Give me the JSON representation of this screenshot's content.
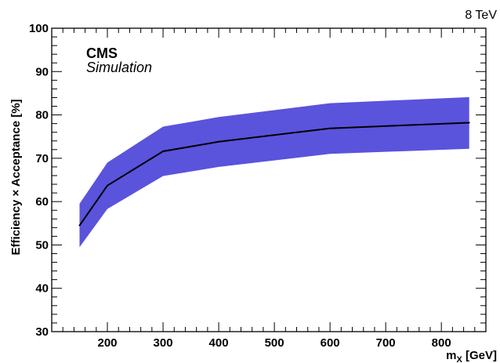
{
  "chart_data": {
    "type": "area",
    "x": [
      150,
      200,
      300,
      400,
      600,
      850
    ],
    "series": [
      {
        "role": "central",
        "values": [
          54.5,
          63.7,
          71.6,
          73.8,
          76.9,
          78.2
        ]
      },
      {
        "role": "band-upper",
        "values": [
          59.5,
          69.0,
          77.3,
          79.5,
          82.7,
          84.1
        ]
      },
      {
        "role": "band-lower",
        "values": [
          49.5,
          58.3,
          65.9,
          68.0,
          71.0,
          72.2
        ]
      }
    ],
    "xlim": [
      100,
      880
    ],
    "ylim": [
      30,
      100
    ],
    "x_ticks": [
      200,
      300,
      400,
      500,
      600,
      700,
      800
    ],
    "y_ticks": [
      30,
      40,
      50,
      60,
      70,
      80,
      90,
      100
    ],
    "xlabel_main": "m",
    "xlabel_sub": "X",
    "xlabel_unit": " [GeV]",
    "ylabel": "Efficiency × Acceptance [%]",
    "energy_label": "8 TeV",
    "experiment_label": "CMS",
    "status_label": "Simulation",
    "band_color": "#5a53dc",
    "line_color": "#000000",
    "grid": false
  }
}
